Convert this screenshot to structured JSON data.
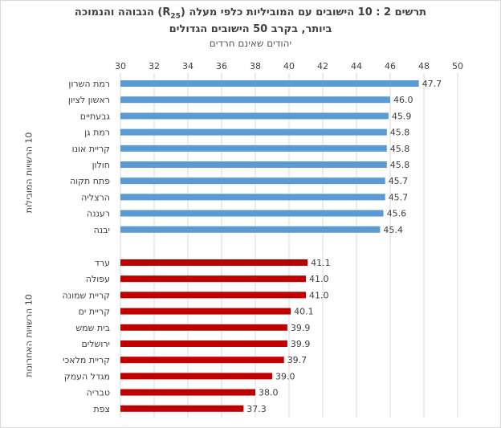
{
  "title": {
    "line1": "תרשים 2 : 10 הישובים עם המוביליות כלפי מעלה (R",
    "line1_sub": "25",
    "line1_end": ") הגבוהה והנמוכה",
    "line2": "ביותר, בקרב 50 הישובים הגדולים",
    "subtitle": "יהודים שאינם חרדים"
  },
  "colors": {
    "top": "#5b9bd5",
    "bottom": "#c00000",
    "grid": "#d9d9d9",
    "text": "#404040"
  },
  "chart_data": {
    "type": "bar",
    "orientation": "horizontal",
    "xlim": [
      30,
      50
    ],
    "xticks": [
      30,
      32,
      34,
      36,
      38,
      40,
      42,
      44,
      46,
      48,
      50
    ],
    "groups": [
      {
        "name": "10 הרשויות המובילות",
        "color": "#5b9bd5",
        "categories": [
          "רמת השרון",
          "ראשון לציון",
          "גבעתיים",
          "רמת גן",
          "קריית אונו",
          "חולון",
          "פתח תקוה",
          "הרצליה",
          "רעננה",
          "יבנה"
        ],
        "values": [
          47.7,
          46.0,
          45.9,
          45.8,
          45.8,
          45.8,
          45.7,
          45.7,
          45.6,
          45.4
        ],
        "labels": [
          "47.7",
          "46.0",
          "45.9",
          "45.8",
          "45.8",
          "45.8",
          "45.7",
          "45.7",
          "45.6",
          "45.4"
        ]
      },
      {
        "name": "10 הרשויות האחרונות",
        "color": "#c00000",
        "categories": [
          "ערד",
          "עפולה",
          "קריית שמונה",
          "קריית ים",
          "בית שמש",
          "ירושלים",
          "קריית מלאכי",
          "מגדל העמק",
          "טבריה",
          "צפת"
        ],
        "values": [
          41.1,
          41.0,
          41.0,
          40.1,
          39.9,
          39.9,
          39.7,
          39.0,
          38.0,
          37.3
        ],
        "labels": [
          "41.1",
          "41.0",
          "41.0",
          "40.1",
          "39.9",
          "39.9",
          "39.7",
          "39.0",
          "38.0",
          "37.3"
        ]
      }
    ]
  }
}
